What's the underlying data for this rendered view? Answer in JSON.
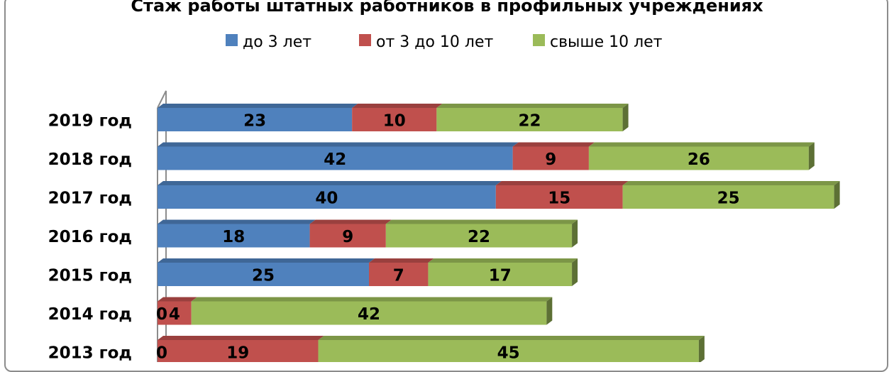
{
  "chart_data": {
    "type": "bar",
    "orientation": "horizontal",
    "stacked": true,
    "three_d": true,
    "title": "Стаж работы штатных работников в профильных учреждениях",
    "legend_position": "top",
    "categories": [
      "2019 год",
      "2018 год",
      "2017 год",
      "2016 год",
      "2015 год",
      "2014 год",
      "2013 год"
    ],
    "series": [
      {
        "name": "до  3 лет",
        "color": "#4f81bd",
        "values": [
          23,
          42,
          40,
          18,
          25,
          0,
          0
        ]
      },
      {
        "name": "от 3 до 10 лет",
        "color": "#c0504d",
        "values": [
          10,
          9,
          15,
          9,
          7,
          4,
          19
        ]
      },
      {
        "name": "свыше 10 лет",
        "color": "#9bbb59",
        "values": [
          22,
          26,
          25,
          22,
          17,
          42,
          45
        ]
      }
    ],
    "grid": false
  }
}
